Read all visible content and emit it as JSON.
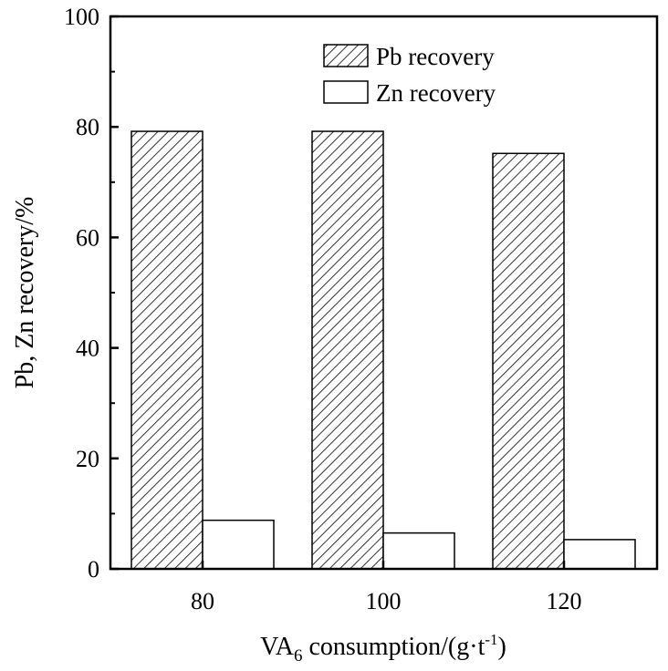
{
  "chart_data": {
    "type": "bar",
    "categories": [
      "80",
      "100",
      "120"
    ],
    "series": [
      {
        "name": "Pb recovery",
        "values": [
          79.2,
          79.2,
          75.2
        ],
        "pattern": "hatched"
      },
      {
        "name": "Zn recovery",
        "values": [
          8.8,
          6.5,
          5.3
        ],
        "pattern": "empty"
      }
    ],
    "xlabel": {
      "main": "VA",
      "sub": "6",
      "rest": " consumption/(g·t",
      "sup": "-1",
      "end": ")"
    },
    "ylabel": "Pb, Zn recovery/%",
    "ylim": [
      0,
      100
    ],
    "yticks": [
      "0",
      "20",
      "40",
      "60",
      "80",
      "100"
    ],
    "grid": false,
    "legend_position": "top-right",
    "colors": {
      "axis": "#000000",
      "bar_fill": "#ffffff",
      "hatch": "#000000"
    }
  }
}
